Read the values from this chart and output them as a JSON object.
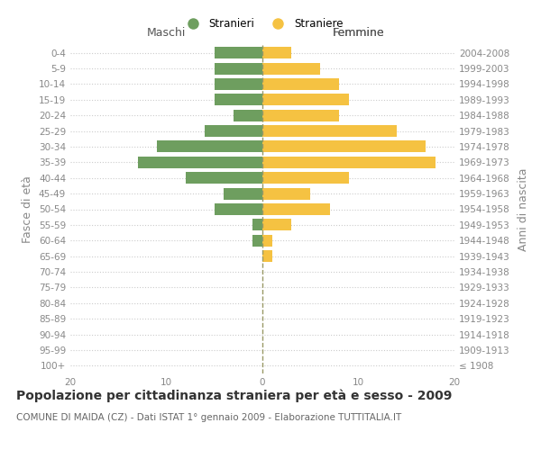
{
  "age_groups": [
    "100+",
    "95-99",
    "90-94",
    "85-89",
    "80-84",
    "75-79",
    "70-74",
    "65-69",
    "60-64",
    "55-59",
    "50-54",
    "45-49",
    "40-44",
    "35-39",
    "30-34",
    "25-29",
    "20-24",
    "15-19",
    "10-14",
    "5-9",
    "0-4"
  ],
  "birth_years": [
    "≤ 1908",
    "1909-1913",
    "1914-1918",
    "1919-1923",
    "1924-1928",
    "1929-1933",
    "1934-1938",
    "1939-1943",
    "1944-1948",
    "1949-1953",
    "1954-1958",
    "1959-1963",
    "1964-1968",
    "1969-1973",
    "1974-1978",
    "1979-1983",
    "1984-1988",
    "1989-1993",
    "1994-1998",
    "1999-2003",
    "2004-2008"
  ],
  "maschi": [
    0,
    0,
    0,
    0,
    0,
    0,
    0,
    0,
    1,
    1,
    5,
    4,
    8,
    13,
    11,
    6,
    3,
    5,
    5,
    5,
    5
  ],
  "femmine": [
    0,
    0,
    0,
    0,
    0,
    0,
    0,
    1,
    1,
    3,
    7,
    5,
    9,
    18,
    17,
    14,
    8,
    9,
    8,
    6,
    3
  ],
  "maschi_color": "#6e9e5f",
  "femmine_color": "#f5c242",
  "center_line_color": "#999966",
  "xlim": [
    -20,
    20
  ],
  "ylabel_left": "Fasce di età",
  "ylabel_right": "Anni di nascita",
  "legend_maschi": "Stranieri",
  "legend_femmine": "Straniere",
  "title": "Popolazione per cittadinanza straniera per età e sesso - 2009",
  "subtitle": "COMUNE DI MAIDA (CZ) - Dati ISTAT 1° gennaio 2009 - Elaborazione TUTTITALIA.IT",
  "grid_color": "#cccccc",
  "bg_color": "#ffffff",
  "bar_height": 0.75,
  "tick_fontsize": 7.5,
  "label_fontsize": 9,
  "title_fontsize": 10,
  "subtitle_fontsize": 7.5
}
